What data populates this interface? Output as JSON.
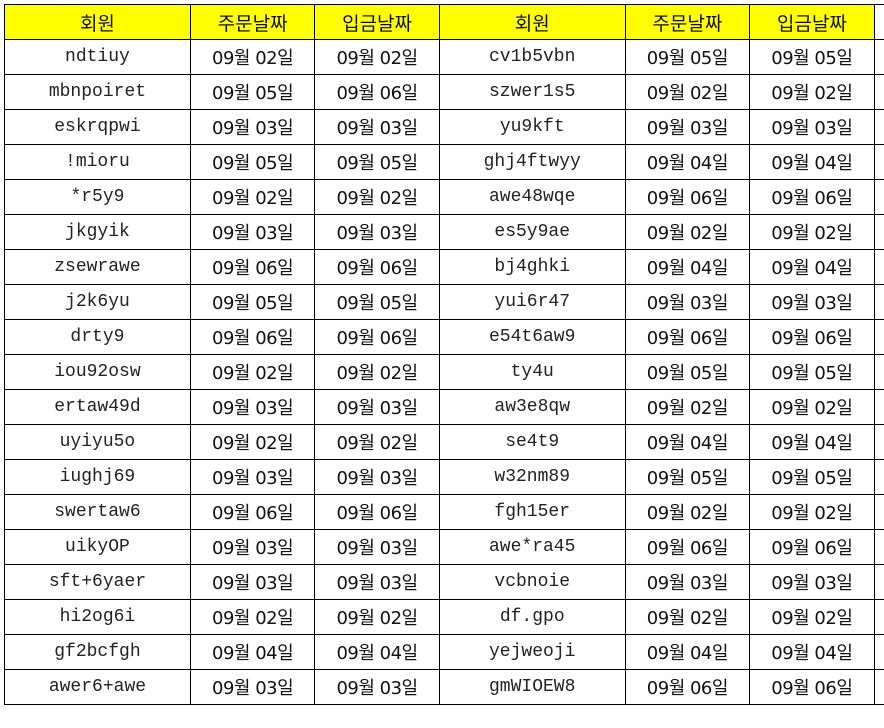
{
  "headers": [
    "회원",
    "주문날짜",
    "입금날짜",
    "회원",
    "주문날짜",
    "입금날짜"
  ],
  "colors": {
    "header_bg": "#ffff00",
    "border": "#000000"
  },
  "rows": [
    [
      "ndtiuy",
      "09월 02일",
      "09월 02일",
      "cv1b5vbn",
      "09월 05일",
      "09월 05일"
    ],
    [
      "mbnpoiret",
      "09월 05일",
      "09월 06일",
      "szwer1s5",
      "09월 02일",
      "09월 02일"
    ],
    [
      "eskrqpwi",
      "09월 03일",
      "09월 03일",
      "yu9kft",
      "09월 03일",
      "09월 03일"
    ],
    [
      "!mioru",
      "09월 05일",
      "09월 05일",
      "ghj4ftwyy",
      "09월 04일",
      "09월 04일"
    ],
    [
      "*r5y9",
      "09월 02일",
      "09월 02일",
      "awe48wqe",
      "09월 06일",
      "09월 06일"
    ],
    [
      "jkgyik",
      "09월 03일",
      "09월 03일",
      "es5y9ae",
      "09월 02일",
      "09월 02일"
    ],
    [
      "zsewrawe",
      "09월 06일",
      "09월 06일",
      "bj4ghki",
      "09월 04일",
      "09월 04일"
    ],
    [
      "j2k6yu",
      "09월 05일",
      "09월 05일",
      "yui6r47",
      "09월 03일",
      "09월 03일"
    ],
    [
      "drty9",
      "09월 06일",
      "09월 06일",
      "e54t6aw9",
      "09월 06일",
      "09월 06일"
    ],
    [
      "iou92osw",
      "09월 02일",
      "09월 02일",
      "ty4u",
      "09월 05일",
      "09월 05일"
    ],
    [
      "ertaw49d",
      "09월 03일",
      "09월 03일",
      "aw3e8qw",
      "09월 02일",
      "09월 02일"
    ],
    [
      "uyiyu5o",
      "09월 02일",
      "09월 02일",
      "se4t9",
      "09월 04일",
      "09월 04일"
    ],
    [
      "iughj69",
      "09월 03일",
      "09월 03일",
      "w32nm89",
      "09월 05일",
      "09월 05일"
    ],
    [
      "swertaw6",
      "09월 06일",
      "09월 06일",
      "fgh15er",
      "09월 02일",
      "09월 02일"
    ],
    [
      "uikyOP",
      "09월 03일",
      "09월 03일",
      "awe*ra45",
      "09월 06일",
      "09월 06일"
    ],
    [
      "sft+6yaer",
      "09월 03일",
      "09월 03일",
      "vcbnoie",
      "09월 03일",
      "09월 03일"
    ],
    [
      "hi2og6i",
      "09월 02일",
      "09월 02일",
      "df.gpo",
      "09월 02일",
      "09월 02일"
    ],
    [
      "gf2bcfgh",
      "09월 04일",
      "09월 04일",
      "yejweoji",
      "09월 04일",
      "09월 04일"
    ],
    [
      "awer6+awe",
      "09월 03일",
      "09월 03일",
      "gmWIOEW8",
      "09월 06일",
      "09월 06일"
    ]
  ]
}
